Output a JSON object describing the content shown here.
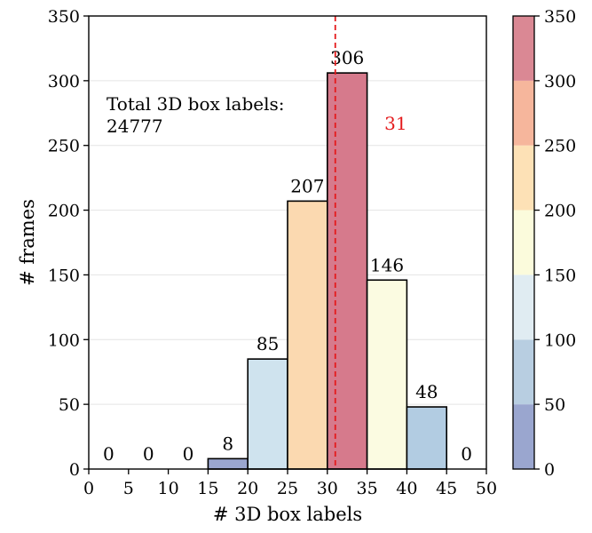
{
  "chart_data": {
    "type": "bar",
    "title": "",
    "xlabel": "# 3D box labels",
    "ylabel": "# frames",
    "bins": [
      [
        0,
        5
      ],
      [
        5,
        10
      ],
      [
        10,
        15
      ],
      [
        15,
        20
      ],
      [
        20,
        25
      ],
      [
        25,
        30
      ],
      [
        30,
        35
      ],
      [
        35,
        40
      ],
      [
        40,
        45
      ],
      [
        45,
        50
      ]
    ],
    "values": [
      0,
      0,
      0,
      8,
      85,
      207,
      306,
      146,
      48,
      0
    ],
    "xlim": [
      0,
      50
    ],
    "ylim": [
      0,
      350
    ],
    "xticks": [
      "0",
      "5",
      "10",
      "15",
      "20",
      "25",
      "30",
      "35",
      "40",
      "45",
      "50"
    ],
    "yticks": [
      "0",
      "50",
      "100",
      "150",
      "200",
      "250",
      "300",
      "350"
    ],
    "grid": "horizontal",
    "annotation_text_line1": "Total 3D box labels:",
    "annotation_text_line2": "24777",
    "mean_line": {
      "x": 31,
      "label": "31",
      "color": "#e41a1c",
      "style": "dashed"
    },
    "colorbar": {
      "range": [
        0,
        350
      ],
      "ticks": [
        "0",
        "50",
        "100",
        "150",
        "200",
        "250",
        "300",
        "350"
      ],
      "colors": [
        "#9aa6cf",
        "#b8cee1",
        "#e0ecf2",
        "#fbfbdc",
        "#fde1b6",
        "#f6b69c",
        "#da8894"
      ]
    },
    "bar_colors": [
      "#9aa6cf",
      "#9aa6cf",
      "#9aa6cf",
      "#9aa6cf",
      "#cfe3ee",
      "#fbd9b0",
      "#d67a8c",
      "#fbfbe1",
      "#b2cce2",
      "#9aa6cf"
    ]
  }
}
